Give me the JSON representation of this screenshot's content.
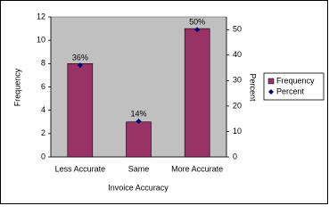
{
  "chart_data": {
    "type": "bar",
    "x_label": "Invoice Accuracy",
    "y_label": "Frequency",
    "y2_label": "Percent",
    "categories": [
      "Less Accurate",
      "Same",
      "More Accurate"
    ],
    "series": [
      {
        "name": "Frequency",
        "color": "#993366",
        "values": [
          8,
          3,
          11
        ]
      },
      {
        "name": "Percent",
        "color": "#000080",
        "axis": "y2",
        "values": [
          36,
          14,
          50
        ],
        "value_labels": [
          "36%",
          "14%",
          "50%"
        ]
      }
    ],
    "ylim": [
      0,
      12
    ],
    "yticks": [
      0,
      2,
      4,
      6,
      8,
      10,
      12
    ],
    "y2lim": [
      0,
      55
    ],
    "y2ticks": [
      0,
      10,
      20,
      30,
      40,
      50
    ],
    "grid": false,
    "legend": "right",
    "plot_background": "#c0c0c0"
  }
}
